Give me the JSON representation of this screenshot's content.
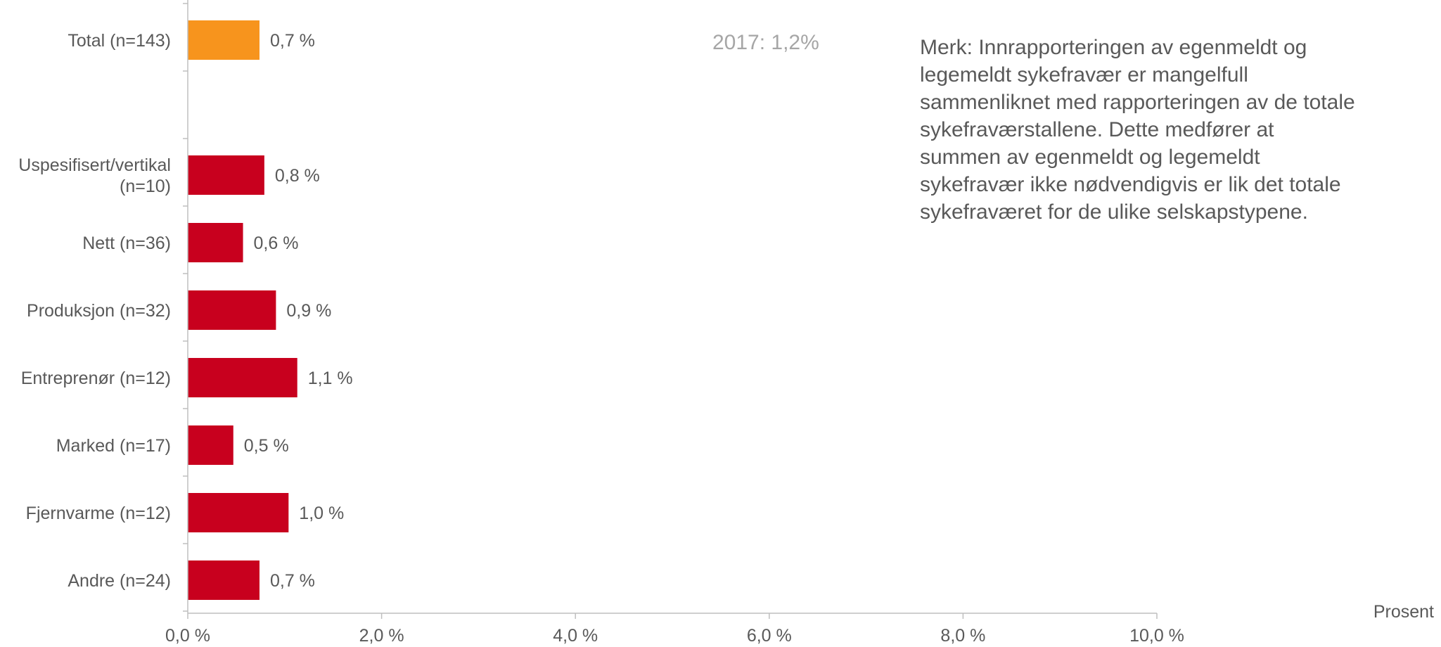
{
  "chart_data": {
    "type": "bar",
    "orientation": "horizontal",
    "categories": [
      "Total (n=143)",
      "",
      "Uspesifisert/vertikal (n=10)",
      "Nett (n=36)",
      "Produksjon (n=32)",
      "Entreprenør (n=12)",
      "Marked (n=17)",
      "Fjernvarme (n=12)",
      "Andre (n=24)"
    ],
    "category_lines": [
      [
        "Total (n=143)"
      ],
      [],
      [
        "Uspesifisert/vertikal",
        "(n=10)"
      ],
      [
        "Nett (n=36)"
      ],
      [
        "Produksjon (n=32)"
      ],
      [
        "Entreprenør (n=12)"
      ],
      [
        "Marked (n=17)"
      ],
      [
        "Fjernvarme (n=12)"
      ],
      [
        "Andre (n=24)"
      ]
    ],
    "values": [
      0.74,
      null,
      0.79,
      0.57,
      0.91,
      1.13,
      0.47,
      1.04,
      0.74
    ],
    "value_labels": [
      "0,7 %",
      "",
      "0,8 %",
      "0,6 %",
      "0,9 %",
      "1,1 %",
      "0,5 %",
      "1,0 %",
      "0,7 %"
    ],
    "bar_colors": [
      "#f7941d",
      null,
      "#c8001e",
      "#c8001e",
      "#c8001e",
      "#c8001e",
      "#c8001e",
      "#c8001e",
      "#c8001e"
    ],
    "xlim": [
      0,
      10
    ],
    "xticks": [
      0,
      2,
      4,
      6,
      8,
      10
    ],
    "xtick_labels": [
      "0,0 %",
      "2,0 %",
      "4,0 %",
      "6,0 %",
      "8,0 %",
      "10,0 %"
    ],
    "xlabel": "Prosent",
    "grid": false,
    "reference_annotation": "2017: 1,2%"
  },
  "note": "Merk: Innrapporteringen av egenmeldt og legemeldt sykefravær er mangelfull sammenliknet med rapporteringen av de totale sykefraværstallene. Dette medfører at summen av egenmeldt og legemeldt sykefravær ikke nødvendigvis er lik det totale sykefraværet for de ulike selskapstypene.",
  "colors": {
    "axis": "#bfbfbf",
    "text": "#595959",
    "muted": "#a6a6a6"
  }
}
